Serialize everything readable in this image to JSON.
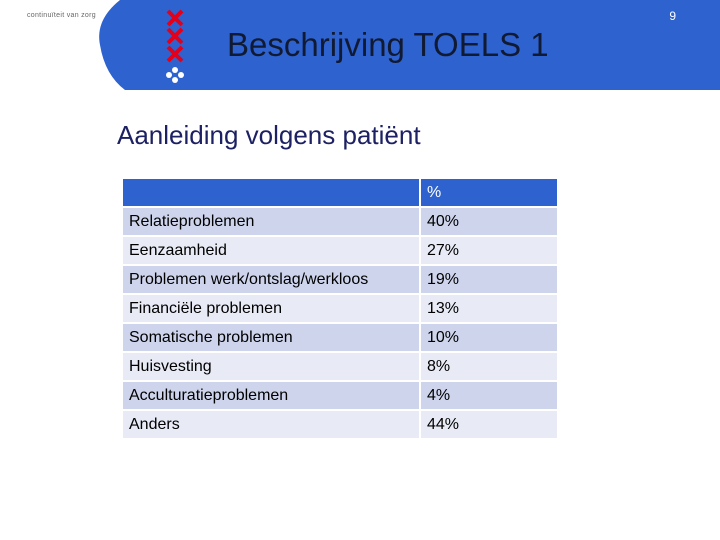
{
  "header": {
    "tagline": "continuïteit van zorg",
    "page_number": "9",
    "title": "Beschrijving TOELS 1"
  },
  "subtitle": "Aanleiding volgens patiënt",
  "table": {
    "header": [
      "%"
    ],
    "rows": [
      [
        "Relatieproblemen",
        "40%"
      ],
      [
        "Eenzaamheid",
        "27%"
      ],
      [
        "Problemen werk/ontslag/werkloos",
        "19%"
      ],
      [
        "Financiële problemen",
        "13%"
      ],
      [
        "Somatische problemen",
        "10%"
      ],
      [
        "Huisvesting",
        "8%"
      ],
      [
        "Acculturatieproblemen",
        "4%"
      ],
      [
        "Anders",
        "44%"
      ]
    ]
  }
}
